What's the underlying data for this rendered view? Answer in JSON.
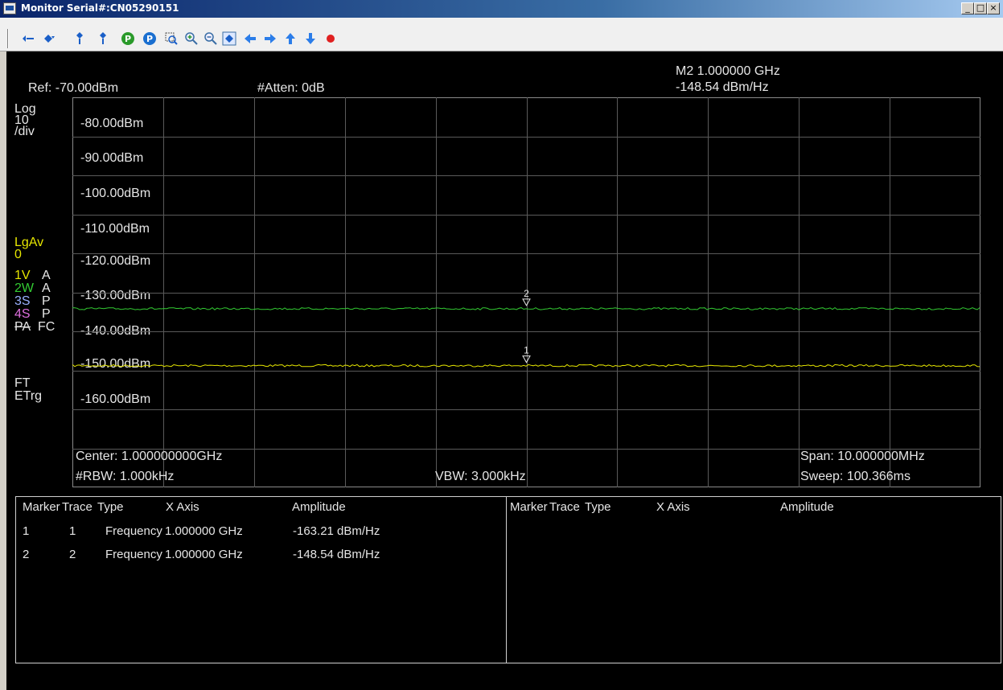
{
  "window": {
    "title": "Monitor Serial#:CN05290151",
    "minimize": "_",
    "maximize": "□",
    "close": "×"
  },
  "toolbar": {
    "icons": [
      "marker-left-icon",
      "marker-right-icon",
      "peak-up-icon",
      "peak-down-icon",
      "peak-search-icon",
      "next-peak-icon",
      "zoom-area-icon",
      "zoom-in-icon",
      "zoom-out-icon",
      "marker-select-icon",
      "arrow-left-icon",
      "arrow-right-icon",
      "arrow-up-icon",
      "arrow-down-icon",
      "record-icon"
    ]
  },
  "header": {
    "ref_level": "Ref: -70.00dBm",
    "atten": "#Atten: 0dB",
    "marker_readout_freq": "M2 1.000000 GHz",
    "marker_readout_amp": "-148.54 dBm/Hz"
  },
  "left_status": {
    "scale_log": "Log",
    "scale_10": "10",
    "scale_div": "/div",
    "avg_label": "LgAv",
    "avg_count": "0",
    "trace1": "1V",
    "trace1_mode": "A",
    "trace2": "2W",
    "trace2_mode": "A",
    "trace3": "3S",
    "trace3_mode": "P",
    "trace4": "4S",
    "trace4_mode": "P",
    "pa": "PA",
    "fc": "FC",
    "ft": "FT",
    "etrg": "ETrg"
  },
  "chart_data": {
    "type": "line",
    "y_unit": "dBm",
    "y_ticks": [
      "-80.00dBm",
      "-90.00dBm",
      "-100.00dBm",
      "-110.00dBm",
      "-120.00dBm",
      "-130.00dBm",
      "-140.00dBm",
      "-150.00dBm",
      "-160.00dBm"
    ],
    "ylim": [
      -170,
      -70
    ],
    "xlim_ghz": [
      0.995,
      1.005
    ],
    "grid": true,
    "series": [
      {
        "trace": 1,
        "color": "#e6e600",
        "level_dbm": -138.8
      },
      {
        "trace": 2,
        "color": "#33cc33",
        "level_dbm": -124.2
      }
    ],
    "markers": [
      {
        "label": "1",
        "x_ghz": 1.0,
        "y_dbm": -138.8
      },
      {
        "label": "2",
        "x_ghz": 1.0,
        "y_dbm": -124.2
      }
    ]
  },
  "footer": {
    "center": "Center: 1.000000000GHz",
    "span": "Span: 10.000000MHz",
    "rbw": "#RBW: 1.000kHz",
    "vbw": "VBW: 3.000kHz",
    "sweep": "Sweep: 100.366ms"
  },
  "marker_table": {
    "headers": [
      "Marker",
      "Trace",
      "Type",
      "X Axis",
      "Amplitude"
    ],
    "rows": [
      [
        "1",
        "1",
        "Frequency",
        "1.000000 GHz",
        "-163.21 dBm/Hz"
      ],
      [
        "2",
        "2",
        "Frequency",
        "1.000000 GHz",
        "-148.54 dBm/Hz"
      ]
    ],
    "right_headers": [
      "Marker",
      "Trace",
      "Type",
      "X Axis",
      "Amplitude"
    ]
  }
}
